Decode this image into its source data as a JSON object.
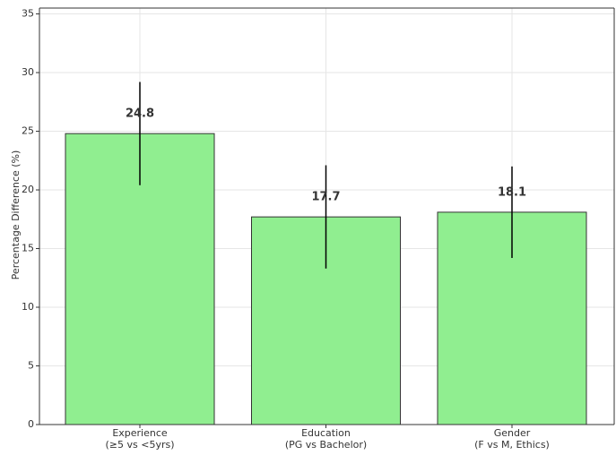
{
  "chart_data": {
    "type": "bar",
    "y_label": "Percentage Difference (%)",
    "categories": [
      "Experience\n(≥5 vs <5yrs)",
      "Education\n(PG vs Bachelor)",
      "Gender\n(F vs M, Ethics)"
    ],
    "values": [
      24.8,
      17.7,
      18.1
    ],
    "errors": [
      4.4,
      4.4,
      3.9
    ],
    "color": "#90ee90",
    "ylim": [
      0,
      35.5
    ],
    "yticks": [
      0,
      5,
      10,
      15,
      20,
      25,
      30,
      35
    ],
    "grid": true
  }
}
